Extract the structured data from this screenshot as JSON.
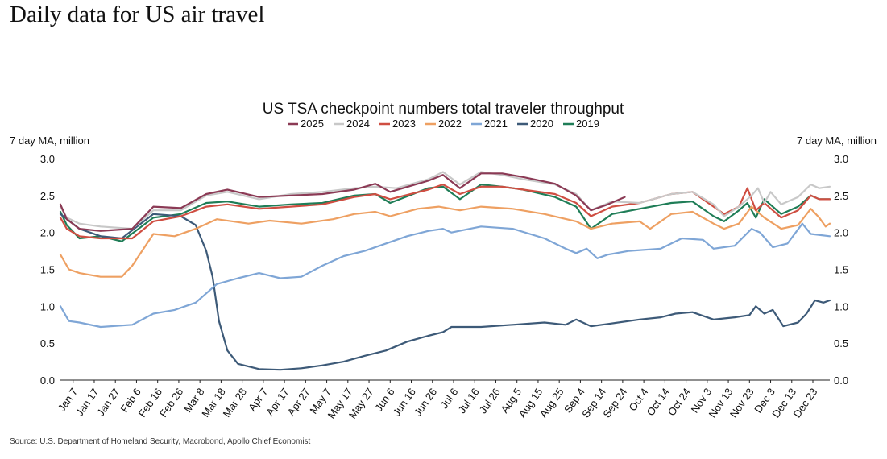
{
  "page": {
    "headline": "Daily data for US air travel",
    "source": "Source: U.S. Department of Homeland Security, Macrobond, Apollo Chief Economist"
  },
  "chart_data": {
    "type": "line",
    "title": "US TSA checkpoint numbers total traveler throughput",
    "ylabel_left": "7 day MA, million",
    "ylabel_right": "7 day MA, million",
    "ylim": [
      0,
      3.0
    ],
    "yticks": [
      "0.0",
      "0.5",
      "1.0",
      "1.5",
      "2.0",
      "2.5",
      "3.0"
    ],
    "legend_position": "top-center",
    "grid": false,
    "x_ticks": [
      "Jan 7",
      "Jan 17",
      "Jan 27",
      "Feb 6",
      "Feb 16",
      "Feb 26",
      "Mar 8",
      "Mar 18",
      "Mar 28",
      "Apr 7",
      "Apr 17",
      "Apr 27",
      "May 7",
      "May 17",
      "May 27",
      "Jun 6",
      "Jun 16",
      "Jun 26",
      "Jul 6",
      "Jul 16",
      "Jul 26",
      "Aug 5",
      "Aug 15",
      "Aug 25",
      "Sep 4",
      "Sep 14",
      "Sep 24",
      "Oct 4",
      "Oct 14",
      "Oct 24",
      "Nov 3",
      "Nov 13",
      "Nov 23",
      "Dec 3",
      "Dec 13",
      "Dec 23"
    ],
    "x_units": "day of year",
    "series": [
      {
        "name": "2025",
        "color": "#8b3a55",
        "points": [
          [
            1,
            2.38
          ],
          [
            4,
            2.18
          ],
          [
            10,
            2.05
          ],
          [
            20,
            2.02
          ],
          [
            35,
            2.05
          ],
          [
            45,
            2.35
          ],
          [
            58,
            2.33
          ],
          [
            70,
            2.52
          ],
          [
            80,
            2.58
          ],
          [
            95,
            2.48
          ],
          [
            110,
            2.5
          ],
          [
            125,
            2.52
          ],
          [
            140,
            2.58
          ],
          [
            150,
            2.66
          ],
          [
            157,
            2.55
          ],
          [
            175,
            2.7
          ],
          [
            182,
            2.78
          ],
          [
            190,
            2.6
          ],
          [
            200,
            2.8
          ],
          [
            210,
            2.8
          ],
          [
            220,
            2.75
          ],
          [
            235,
            2.66
          ],
          [
            245,
            2.5
          ],
          [
            252,
            2.3
          ],
          [
            260,
            2.38
          ],
          [
            268,
            2.48
          ]
        ]
      },
      {
        "name": "2024",
        "color": "#c8c8c8",
        "points": [
          [
            1,
            2.35
          ],
          [
            4,
            2.2
          ],
          [
            10,
            2.12
          ],
          [
            20,
            2.08
          ],
          [
            35,
            2.05
          ],
          [
            45,
            2.3
          ],
          [
            58,
            2.3
          ],
          [
            70,
            2.5
          ],
          [
            80,
            2.55
          ],
          [
            95,
            2.45
          ],
          [
            110,
            2.52
          ],
          [
            125,
            2.55
          ],
          [
            140,
            2.6
          ],
          [
            150,
            2.62
          ],
          [
            160,
            2.6
          ],
          [
            175,
            2.72
          ],
          [
            182,
            2.82
          ],
          [
            190,
            2.65
          ],
          [
            200,
            2.82
          ],
          [
            210,
            2.78
          ],
          [
            220,
            2.72
          ],
          [
            235,
            2.65
          ],
          [
            245,
            2.52
          ],
          [
            252,
            2.3
          ],
          [
            262,
            2.42
          ],
          [
            275,
            2.4
          ],
          [
            290,
            2.52
          ],
          [
            300,
            2.55
          ],
          [
            310,
            2.38
          ],
          [
            315,
            2.22
          ],
          [
            322,
            2.35
          ],
          [
            328,
            2.5
          ],
          [
            331,
            2.6
          ],
          [
            334,
            2.4
          ],
          [
            337,
            2.55
          ],
          [
            342,
            2.38
          ],
          [
            350,
            2.48
          ],
          [
            356,
            2.65
          ],
          [
            360,
            2.6
          ],
          [
            365,
            2.62
          ]
        ]
      },
      {
        "name": "2023",
        "color": "#cf4e42",
        "points": [
          [
            1,
            2.2
          ],
          [
            4,
            2.05
          ],
          [
            10,
            1.95
          ],
          [
            20,
            1.92
          ],
          [
            35,
            1.92
          ],
          [
            45,
            2.15
          ],
          [
            58,
            2.22
          ],
          [
            70,
            2.35
          ],
          [
            80,
            2.38
          ],
          [
            95,
            2.32
          ],
          [
            110,
            2.35
          ],
          [
            125,
            2.38
          ],
          [
            140,
            2.48
          ],
          [
            150,
            2.52
          ],
          [
            157,
            2.45
          ],
          [
            175,
            2.58
          ],
          [
            182,
            2.65
          ],
          [
            190,
            2.52
          ],
          [
            200,
            2.62
          ],
          [
            210,
            2.62
          ],
          [
            220,
            2.58
          ],
          [
            235,
            2.52
          ],
          [
            245,
            2.4
          ],
          [
            252,
            2.22
          ],
          [
            262,
            2.35
          ],
          [
            275,
            2.4
          ],
          [
            290,
            2.52
          ],
          [
            300,
            2.55
          ],
          [
            310,
            2.35
          ],
          [
            315,
            2.25
          ],
          [
            322,
            2.35
          ],
          [
            326,
            2.6
          ],
          [
            330,
            2.3
          ],
          [
            334,
            2.4
          ],
          [
            342,
            2.2
          ],
          [
            350,
            2.3
          ],
          [
            356,
            2.5
          ],
          [
            360,
            2.45
          ],
          [
            365,
            2.45
          ]
        ]
      },
      {
        "name": "2022",
        "color": "#eea062",
        "points": [
          [
            1,
            1.7
          ],
          [
            5,
            1.5
          ],
          [
            10,
            1.45
          ],
          [
            20,
            1.4
          ],
          [
            30,
            1.4
          ],
          [
            35,
            1.55
          ],
          [
            45,
            1.98
          ],
          [
            55,
            1.95
          ],
          [
            65,
            2.05
          ],
          [
            75,
            2.18
          ],
          [
            90,
            2.12
          ],
          [
            100,
            2.16
          ],
          [
            115,
            2.12
          ],
          [
            130,
            2.18
          ],
          [
            140,
            2.25
          ],
          [
            150,
            2.28
          ],
          [
            157,
            2.22
          ],
          [
            170,
            2.32
          ],
          [
            180,
            2.35
          ],
          [
            190,
            2.3
          ],
          [
            200,
            2.35
          ],
          [
            215,
            2.32
          ],
          [
            230,
            2.25
          ],
          [
            245,
            2.15
          ],
          [
            252,
            2.05
          ],
          [
            262,
            2.12
          ],
          [
            275,
            2.15
          ],
          [
            280,
            2.05
          ],
          [
            290,
            2.25
          ],
          [
            300,
            2.28
          ],
          [
            310,
            2.12
          ],
          [
            315,
            2.05
          ],
          [
            322,
            2.12
          ],
          [
            328,
            2.35
          ],
          [
            334,
            2.2
          ],
          [
            342,
            2.05
          ],
          [
            350,
            2.1
          ],
          [
            356,
            2.32
          ],
          [
            360,
            2.2
          ],
          [
            363,
            2.08
          ],
          [
            365,
            2.12
          ]
        ]
      },
      {
        "name": "2021",
        "color": "#7fa6d6",
        "points": [
          [
            1,
            1.0
          ],
          [
            5,
            0.8
          ],
          [
            10,
            0.78
          ],
          [
            20,
            0.72
          ],
          [
            35,
            0.75
          ],
          [
            45,
            0.9
          ],
          [
            55,
            0.95
          ],
          [
            65,
            1.05
          ],
          [
            75,
            1.3
          ],
          [
            85,
            1.38
          ],
          [
            95,
            1.45
          ],
          [
            105,
            1.38
          ],
          [
            115,
            1.4
          ],
          [
            125,
            1.55
          ],
          [
            135,
            1.68
          ],
          [
            145,
            1.75
          ],
          [
            155,
            1.85
          ],
          [
            165,
            1.95
          ],
          [
            175,
            2.02
          ],
          [
            182,
            2.05
          ],
          [
            186,
            2.0
          ],
          [
            200,
            2.08
          ],
          [
            215,
            2.05
          ],
          [
            230,
            1.92
          ],
          [
            240,
            1.78
          ],
          [
            245,
            1.72
          ],
          [
            250,
            1.78
          ],
          [
            255,
            1.65
          ],
          [
            260,
            1.7
          ],
          [
            270,
            1.75
          ],
          [
            285,
            1.78
          ],
          [
            295,
            1.92
          ],
          [
            305,
            1.9
          ],
          [
            310,
            1.78
          ],
          [
            320,
            1.82
          ],
          [
            328,
            2.05
          ],
          [
            332,
            2.0
          ],
          [
            338,
            1.8
          ],
          [
            345,
            1.85
          ],
          [
            352,
            2.12
          ],
          [
            356,
            1.98
          ],
          [
            365,
            1.95
          ]
        ]
      },
      {
        "name": "2020",
        "color": "#3d5a78",
        "points": [
          [
            1,
            2.25
          ],
          [
            10,
            2.05
          ],
          [
            20,
            1.95
          ],
          [
            30,
            1.92
          ],
          [
            45,
            2.25
          ],
          [
            58,
            2.22
          ],
          [
            65,
            2.1
          ],
          [
            70,
            1.75
          ],
          [
            73,
            1.4
          ],
          [
            76,
            0.8
          ],
          [
            80,
            0.4
          ],
          [
            85,
            0.22
          ],
          [
            95,
            0.15
          ],
          [
            105,
            0.14
          ],
          [
            115,
            0.16
          ],
          [
            125,
            0.2
          ],
          [
            135,
            0.25
          ],
          [
            145,
            0.33
          ],
          [
            155,
            0.4
          ],
          [
            165,
            0.52
          ],
          [
            175,
            0.6
          ],
          [
            182,
            0.65
          ],
          [
            186,
            0.72
          ],
          [
            200,
            0.72
          ],
          [
            215,
            0.75
          ],
          [
            230,
            0.78
          ],
          [
            240,
            0.75
          ],
          [
            245,
            0.82
          ],
          [
            252,
            0.73
          ],
          [
            260,
            0.76
          ],
          [
            275,
            0.82
          ],
          [
            285,
            0.85
          ],
          [
            292,
            0.9
          ],
          [
            300,
            0.92
          ],
          [
            310,
            0.82
          ],
          [
            320,
            0.85
          ],
          [
            327,
            0.88
          ],
          [
            330,
            1.0
          ],
          [
            334,
            0.9
          ],
          [
            338,
            0.95
          ],
          [
            343,
            0.73
          ],
          [
            350,
            0.78
          ],
          [
            354,
            0.9
          ],
          [
            358,
            1.08
          ],
          [
            362,
            1.05
          ],
          [
            365,
            1.08
          ]
        ]
      },
      {
        "name": "2019",
        "color": "#1f7d57",
        "points": [
          [
            1,
            2.28
          ],
          [
            4,
            2.1
          ],
          [
            10,
            1.92
          ],
          [
            20,
            1.95
          ],
          [
            30,
            1.88
          ],
          [
            45,
            2.2
          ],
          [
            58,
            2.25
          ],
          [
            70,
            2.4
          ],
          [
            80,
            2.42
          ],
          [
            95,
            2.35
          ],
          [
            110,
            2.38
          ],
          [
            125,
            2.4
          ],
          [
            140,
            2.5
          ],
          [
            150,
            2.52
          ],
          [
            157,
            2.4
          ],
          [
            175,
            2.6
          ],
          [
            182,
            2.62
          ],
          [
            190,
            2.45
          ],
          [
            200,
            2.65
          ],
          [
            210,
            2.62
          ],
          [
            220,
            2.58
          ],
          [
            235,
            2.48
          ],
          [
            245,
            2.35
          ],
          [
            252,
            2.05
          ],
          [
            262,
            2.25
          ],
          [
            275,
            2.32
          ],
          [
            290,
            2.4
          ],
          [
            300,
            2.42
          ],
          [
            310,
            2.22
          ],
          [
            315,
            2.15
          ],
          [
            322,
            2.3
          ],
          [
            326,
            2.4
          ],
          [
            330,
            2.2
          ],
          [
            334,
            2.45
          ],
          [
            342,
            2.25
          ],
          [
            350,
            2.35
          ],
          [
            356,
            2.5
          ],
          [
            360,
            2.45
          ],
          [
            365,
            2.45
          ]
        ]
      }
    ]
  }
}
